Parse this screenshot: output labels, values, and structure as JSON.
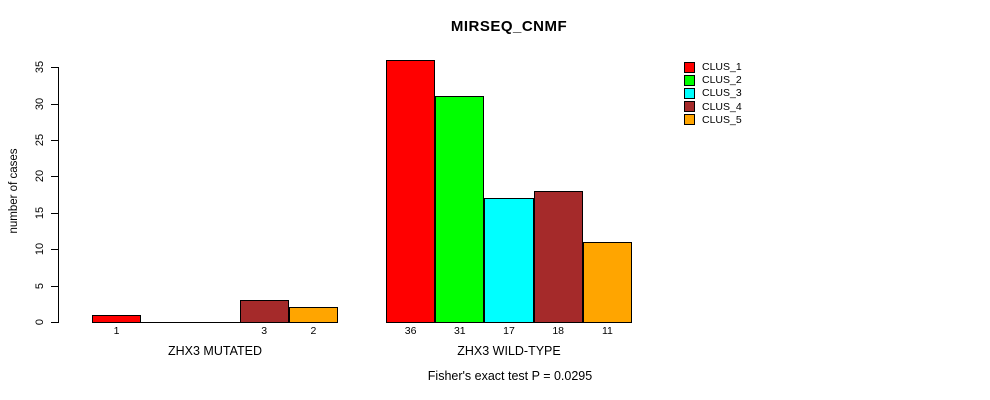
{
  "title": "MIRSEQ_CNMF",
  "y_axis": {
    "label": "number of cases",
    "ticks": [
      0,
      5,
      10,
      15,
      20,
      25,
      30,
      35
    ]
  },
  "footer": "Fisher's exact test P = 0.0295",
  "legend": {
    "position": "top-right",
    "items": [
      {
        "label": "CLUS_1",
        "color": "#ff0000"
      },
      {
        "label": "CLUS_2",
        "color": "#00ff00"
      },
      {
        "label": "CLUS_3",
        "color": "#00ffff"
      },
      {
        "label": "CLUS_4",
        "color": "#a52a2a"
      },
      {
        "label": "CLUS_5",
        "color": "#ffa500"
      }
    ]
  },
  "chart_data": {
    "type": "bar",
    "title": "MIRSEQ_CNMF",
    "xlabel": "",
    "ylabel": "number of cases",
    "annotation": "Fisher's exact test P = 0.0295",
    "categories": [
      "ZHX3 MUTATED",
      "ZHX3 WILD-TYPE"
    ],
    "series": [
      {
        "name": "CLUS_1",
        "color": "#ff0000",
        "values": [
          1,
          36
        ]
      },
      {
        "name": "CLUS_2",
        "color": "#00ff00",
        "values": [
          0,
          31
        ]
      },
      {
        "name": "CLUS_3",
        "color": "#00ffff",
        "values": [
          0,
          17
        ]
      },
      {
        "name": "CLUS_4",
        "color": "#a52a2a",
        "values": [
          3,
          18
        ]
      },
      {
        "name": "CLUS_5",
        "color": "#ffa500",
        "values": [
          2,
          11
        ]
      }
    ],
    "ylim": [
      0,
      36
    ],
    "yticks": [
      0,
      5,
      10,
      15,
      20,
      25,
      30,
      35
    ],
    "grid": false,
    "bar_borders": "#000000",
    "bar_value_labels": true,
    "zero_value_bars_drawn_as_baseline": true,
    "zero_value_bars_unlabeled": true,
    "legend_position": "top-right",
    "legend_entries": [
      "CLUS_1",
      "CLUS_2",
      "CLUS_3",
      "CLUS_4",
      "CLUS_5"
    ]
  }
}
